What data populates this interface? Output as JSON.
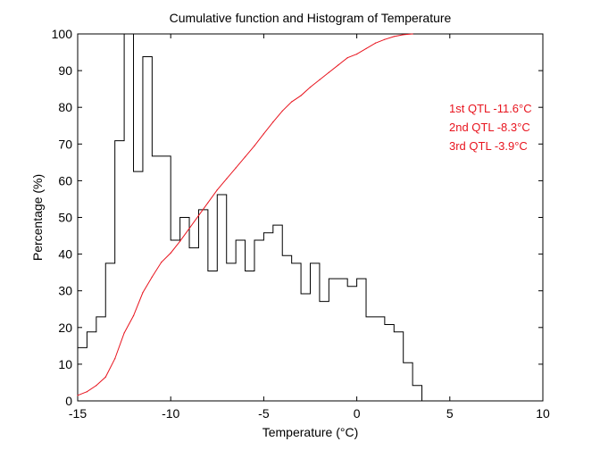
{
  "chart_data": {
    "type": "line",
    "title": "Cumulative function and Histogram of Temperature",
    "xlabel": "Temperature (°C)",
    "ylabel": "Percentage (%)",
    "xlim": [
      -15,
      10
    ],
    "ylim": [
      0,
      100
    ],
    "x_ticks": [
      -15,
      -10,
      -5,
      0,
      5,
      10
    ],
    "y_ticks": [
      0,
      10,
      20,
      30,
      40,
      50,
      60,
      70,
      80,
      90,
      100
    ],
    "x_tick_labels": [
      "-15",
      "-10",
      "-5",
      "0",
      "5",
      "10"
    ],
    "y_tick_labels": [
      "0",
      "10",
      "20",
      "30",
      "40",
      "50",
      "60",
      "70",
      "80",
      "90",
      "100"
    ],
    "grid": false,
    "series": [
      {
        "kind": "histogram-stairs",
        "color": "#000000",
        "bin_edges": [
          -15,
          -14.5,
          -14,
          -13.5,
          -13,
          -12.5,
          -12,
          -11.5,
          -11,
          -10.5,
          -10,
          -9.5,
          -9,
          -8.5,
          -8,
          -7.5,
          -7,
          -6.5,
          -6,
          -5.5,
          -5,
          -4.5,
          -4,
          -3.5,
          -3,
          -2.5,
          -2,
          -1.5,
          -1,
          -0.5,
          0,
          0.5,
          1,
          1.5,
          2,
          2.5,
          3,
          3.5
        ],
        "values": [
          14.5,
          18.8,
          22.9,
          37.5,
          70.9,
          100,
          62.5,
          93.8,
          66.7,
          66.7,
          43.8,
          50,
          41.7,
          52.1,
          35.4,
          56.2,
          37.5,
          43.8,
          35.4,
          43.8,
          45.8,
          47.9,
          39.6,
          37.5,
          29.2,
          37.5,
          27.1,
          33.3,
          33.3,
          31.2,
          33.3,
          22.9,
          22.9,
          20.8,
          18.8,
          10.4,
          4.2
        ]
      },
      {
        "kind": "cumulative",
        "color": "#e8141e",
        "x": [
          -15,
          -14.5,
          -14,
          -13.5,
          -13,
          -12.5,
          -12,
          -11.5,
          -11,
          -10.5,
          -10,
          -9.5,
          -9,
          -8.5,
          -8,
          -7.5,
          -7,
          -6.5,
          -6,
          -5.5,
          -5,
          -4.5,
          -4,
          -3.5,
          -3,
          -2.5,
          -2,
          -1.5,
          -1,
          -0.5,
          0,
          0.5,
          1,
          1.5,
          2,
          2.5,
          3
        ],
        "values": [
          1.5,
          2.5,
          4.2,
          6.5,
          11.5,
          18.5,
          23.2,
          29.5,
          33.8,
          37.8,
          40.3,
          43.5,
          47,
          50.5,
          54,
          57.5,
          60.5,
          63.5,
          66.5,
          69.5,
          72.8,
          76,
          79,
          81.5,
          83.2,
          85.5,
          87.5,
          89.5,
          91.5,
          93.5,
          94.5,
          96,
          97.5,
          98.5,
          99.3,
          99.8,
          100
        ]
      }
    ],
    "annotations": [
      {
        "text": "1st QTL -11.6°C",
        "color": "#e8141e"
      },
      {
        "text": "2nd QTL -8.3°C",
        "color": "#e8141e"
      },
      {
        "text": "3rd QTL -3.9°C",
        "color": "#e8141e"
      }
    ]
  }
}
